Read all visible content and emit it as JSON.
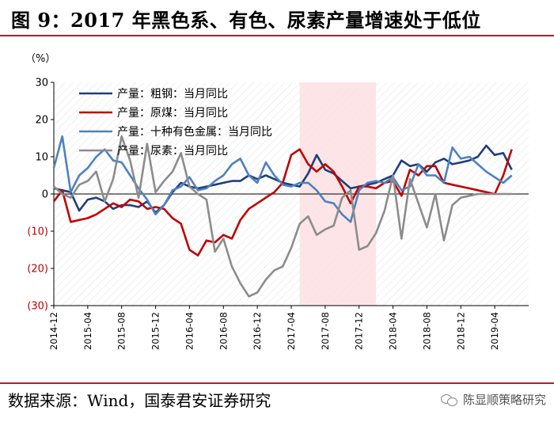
{
  "header": {
    "title": "图 9：2017 年黑色系、有色、尿素产量增速处于低位"
  },
  "footer": {
    "source": "数据来源：Wind，国泰君安证券研究",
    "watermark": "陈显顺策略研究",
    "watermark_icon": "wechat-icon"
  },
  "chart_data": {
    "type": "line",
    "unit_label": "（%）",
    "ylim": [
      -30,
      30
    ],
    "yticks": [
      30,
      20,
      10,
      0,
      -10,
      -20,
      -30
    ],
    "ytick_labels": [
      "30",
      "20",
      "10",
      "0",
      "(10)",
      "(20)",
      "(30)"
    ],
    "ytick_negative_color": "#c00000",
    "xlim": [
      "2014-12",
      "2019-08"
    ],
    "xticks": [
      "2014-12",
      "2015-04",
      "2015-08",
      "2015-12",
      "2016-04",
      "2016-08",
      "2016-12",
      "2017-04",
      "2017-08",
      "2017-12",
      "2018-04",
      "2018-08",
      "2018-12",
      "2019-04"
    ],
    "shaded_region": {
      "from": "2017-05",
      "to": "2018-02",
      "color": "#fde0e3"
    },
    "grid": false,
    "legend_position": "top-left",
    "series": [
      {
        "name": "产量：粗钢：当月同比",
        "color": "#1f3f7a",
        "points": [
          [
            "2014-12",
            1.5
          ],
          [
            "2015-01",
            1.0
          ],
          [
            "2015-02",
            0.5
          ],
          [
            "2015-03",
            -4.5
          ],
          [
            "2015-04",
            -1.5
          ],
          [
            "2015-05",
            -1.0
          ],
          [
            "2015-06",
            -2.0
          ],
          [
            "2015-07",
            -4.0
          ],
          [
            "2015-08",
            -3.0
          ],
          [
            "2015-09",
            -3.0
          ],
          [
            "2015-10",
            -3.5
          ],
          [
            "2015-11",
            -2.0
          ],
          [
            "2015-12",
            -5.0
          ],
          [
            "2016-01",
            -3.0
          ],
          [
            "2016-02",
            0.5
          ],
          [
            "2016-03",
            3.0
          ],
          [
            "2016-04",
            2.0
          ],
          [
            "2016-05",
            1.5
          ],
          [
            "2016-06",
            2.0
          ],
          [
            "2016-07",
            2.5
          ],
          [
            "2016-08",
            3.0
          ],
          [
            "2016-09",
            3.5
          ],
          [
            "2016-10",
            3.5
          ],
          [
            "2016-11",
            5.0
          ],
          [
            "2016-12",
            4.0
          ],
          [
            "2017-01",
            5.0
          ],
          [
            "2017-02",
            4.0
          ],
          [
            "2017-03",
            3.0
          ],
          [
            "2017-04",
            2.5
          ],
          [
            "2017-05",
            2.0
          ],
          [
            "2017-06",
            5.5
          ],
          [
            "2017-07",
            10.5
          ],
          [
            "2017-08",
            6.5
          ],
          [
            "2017-09",
            5.5
          ],
          [
            "2017-10",
            3.5
          ],
          [
            "2017-11",
            1.5
          ],
          [
            "2017-12",
            2.0
          ],
          [
            "2018-01",
            2.5
          ],
          [
            "2018-02",
            3.0
          ],
          [
            "2018-03",
            4.0
          ],
          [
            "2018-04",
            5.0
          ],
          [
            "2018-05",
            9.0
          ],
          [
            "2018-06",
            7.5
          ],
          [
            "2018-07",
            8.0
          ],
          [
            "2018-08",
            6.0
          ],
          [
            "2018-09",
            8.5
          ],
          [
            "2018-10",
            9.5
          ],
          [
            "2018-11",
            8.0
          ],
          [
            "2018-12",
            8.5
          ],
          [
            "2019-01",
            9.0
          ],
          [
            "2019-02",
            10.0
          ],
          [
            "2019-03",
            13.0
          ],
          [
            "2019-04",
            10.5
          ],
          [
            "2019-05",
            11.0
          ],
          [
            "2019-06",
            6.5
          ]
        ]
      },
      {
        "name": "产量：原煤：当月同比",
        "color": "#c00000",
        "points": [
          [
            "2014-12",
            -2.0
          ],
          [
            "2015-01",
            1.0
          ],
          [
            "2015-02",
            -7.5
          ],
          [
            "2015-03",
            -7.0
          ],
          [
            "2015-04",
            -6.5
          ],
          [
            "2015-05",
            -5.5
          ],
          [
            "2015-06",
            -4.0
          ],
          [
            "2015-07",
            -2.5
          ],
          [
            "2015-08",
            -3.5
          ],
          [
            "2015-09",
            -1.5
          ],
          [
            "2015-10",
            -2.0
          ],
          [
            "2015-11",
            -4.0
          ],
          [
            "2015-12",
            -3.5
          ],
          [
            "2016-01",
            -4.0
          ],
          [
            "2016-02",
            -6.5
          ],
          [
            "2016-03",
            -8.0
          ],
          [
            "2016-04",
            -15.0
          ],
          [
            "2016-05",
            -16.5
          ],
          [
            "2016-06",
            -12.5
          ],
          [
            "2016-07",
            -13.0
          ],
          [
            "2016-08",
            -11.0
          ],
          [
            "2016-09",
            -12.0
          ],
          [
            "2016-10",
            -7.0
          ],
          [
            "2016-11",
            -4.0
          ],
          [
            "2016-12",
            -2.5
          ],
          [
            "2017-01",
            -1.0
          ],
          [
            "2017-02",
            0.5
          ],
          [
            "2017-03",
            3.0
          ],
          [
            "2017-04",
            10.5
          ],
          [
            "2017-05",
            12.0
          ],
          [
            "2017-06",
            8.0
          ],
          [
            "2017-07",
            6.0
          ],
          [
            "2017-08",
            8.0
          ],
          [
            "2017-09",
            6.0
          ],
          [
            "2017-10",
            2.0
          ],
          [
            "2017-11",
            -2.5
          ],
          [
            "2017-12",
            2.0
          ],
          [
            "2018-01",
            2.0
          ],
          [
            "2018-02",
            1.5
          ],
          [
            "2018-03",
            3.0
          ],
          [
            "2018-04",
            3.5
          ],
          [
            "2018-05",
            -0.5
          ],
          [
            "2018-06",
            6.5
          ],
          [
            "2018-07",
            5.0
          ],
          [
            "2018-08",
            7.5
          ],
          [
            "2018-09",
            7.5
          ],
          [
            "2018-10",
            3.0
          ],
          [
            "2018-11",
            2.5
          ],
          [
            "2018-12",
            2.0
          ],
          [
            "2019-01",
            1.5
          ],
          [
            "2019-02",
            1.0
          ],
          [
            "2019-03",
            0.5
          ],
          [
            "2019-04",
            0.0
          ],
          [
            "2019-05",
            5.0
          ],
          [
            "2019-06",
            12.0
          ]
        ]
      },
      {
        "name": "产量：十种有色金属：当月同比",
        "color": "#4f81bd",
        "points": [
          [
            "2014-12",
            7.0
          ],
          [
            "2015-01",
            15.5
          ],
          [
            "2015-02",
            0.5
          ],
          [
            "2015-03",
            5.0
          ],
          [
            "2015-04",
            7.0
          ],
          [
            "2015-05",
            10.0
          ],
          [
            "2015-06",
            12.0
          ],
          [
            "2015-07",
            9.0
          ],
          [
            "2015-08",
            8.5
          ],
          [
            "2015-09",
            5.0
          ],
          [
            "2015-10",
            1.5
          ],
          [
            "2015-11",
            -1.5
          ],
          [
            "2015-12",
            -5.5
          ],
          [
            "2016-01",
            -3.0
          ],
          [
            "2016-02",
            1.0
          ],
          [
            "2016-03",
            2.0
          ],
          [
            "2016-04",
            4.5
          ],
          [
            "2016-05",
            1.0
          ],
          [
            "2016-06",
            1.5
          ],
          [
            "2016-07",
            3.5
          ],
          [
            "2016-08",
            5.0
          ],
          [
            "2016-09",
            8.0
          ],
          [
            "2016-10",
            9.5
          ],
          [
            "2016-11",
            5.0
          ],
          [
            "2016-12",
            3.0
          ],
          [
            "2017-01",
            8.5
          ],
          [
            "2017-02",
            5.0
          ],
          [
            "2017-03",
            2.5
          ],
          [
            "2017-04",
            2.0
          ],
          [
            "2017-05",
            3.0
          ],
          [
            "2017-06",
            3.0
          ],
          [
            "2017-07",
            1.0
          ],
          [
            "2017-08",
            -2.0
          ],
          [
            "2017-09",
            -2.5
          ],
          [
            "2017-10",
            -5.5
          ],
          [
            "2017-11",
            -7.5
          ],
          [
            "2017-12",
            1.0
          ],
          [
            "2018-01",
            3.0
          ],
          [
            "2018-02",
            3.5
          ],
          [
            "2018-03",
            3.0
          ],
          [
            "2018-04",
            4.5
          ],
          [
            "2018-05",
            1.0
          ],
          [
            "2018-06",
            2.0
          ],
          [
            "2018-07",
            8.0
          ],
          [
            "2018-08",
            5.0
          ],
          [
            "2018-09",
            5.0
          ],
          [
            "2018-10",
            3.0
          ],
          [
            "2018-11",
            12.5
          ],
          [
            "2018-12",
            9.5
          ],
          [
            "2019-01",
            10.0
          ],
          [
            "2019-02",
            8.0
          ],
          [
            "2019-03",
            6.0
          ],
          [
            "2019-04",
            4.5
          ],
          [
            "2019-05",
            3.0
          ],
          [
            "2019-06",
            5.0
          ]
        ]
      },
      {
        "name": "产量：尿素：当月同比",
        "color": "#8c8c8c",
        "points": [
          [
            "2014-12",
            2.0
          ],
          [
            "2015-01",
            0.0
          ],
          [
            "2015-02",
            -1.0
          ],
          [
            "2015-03",
            2.5
          ],
          [
            "2015-04",
            3.5
          ],
          [
            "2015-05",
            6.0
          ],
          [
            "2015-06",
            -2.0
          ],
          [
            "2015-07",
            4.0
          ],
          [
            "2015-08",
            15.5
          ],
          [
            "2015-09",
            9.0
          ],
          [
            "2015-10",
            -1.0
          ],
          [
            "2015-11",
            13.5
          ],
          [
            "2015-12",
            0.5
          ],
          [
            "2016-01",
            3.5
          ],
          [
            "2016-02",
            6.0
          ],
          [
            "2016-03",
            11.0
          ],
          [
            "2016-04",
            2.0
          ],
          [
            "2016-05",
            0.0
          ],
          [
            "2016-06",
            -1.5
          ],
          [
            "2016-07",
            -15.5
          ],
          [
            "2016-08",
            -12.0
          ],
          [
            "2016-09",
            -19.5
          ],
          [
            "2016-10",
            -24.0
          ],
          [
            "2016-11",
            -27.5
          ],
          [
            "2016-12",
            -26.5
          ],
          [
            "2017-01",
            -23.0
          ],
          [
            "2017-02",
            -20.5
          ],
          [
            "2017-03",
            -19.5
          ],
          [
            "2017-04",
            -14.5
          ],
          [
            "2017-05",
            -8.0
          ],
          [
            "2017-06",
            -6.0
          ],
          [
            "2017-07",
            -11.0
          ],
          [
            "2017-08",
            -9.5
          ],
          [
            "2017-09",
            -8.5
          ],
          [
            "2017-10",
            -1.0
          ],
          [
            "2017-11",
            1.0
          ],
          [
            "2017-12",
            -15.0
          ],
          [
            "2018-01",
            -14.0
          ],
          [
            "2018-02",
            -10.5
          ],
          [
            "2018-03",
            -4.5
          ],
          [
            "2018-04",
            5.0
          ],
          [
            "2018-05",
            -12.0
          ],
          [
            "2018-06",
            4.0
          ],
          [
            "2018-07",
            -2.5
          ],
          [
            "2018-08",
            -9.0
          ],
          [
            "2018-09",
            0.0
          ],
          [
            "2018-10",
            -12.5
          ],
          [
            "2018-11",
            -3.0
          ],
          [
            "2018-12",
            -1.0
          ],
          [
            "2019-01",
            -0.5
          ],
          [
            "2019-02",
            0.0
          ],
          [
            "2019-03",
            0.0
          ],
          [
            "2019-04",
            0.0
          ],
          [
            "2019-05",
            0.0
          ],
          [
            "2019-06",
            0.0
          ]
        ]
      }
    ]
  }
}
